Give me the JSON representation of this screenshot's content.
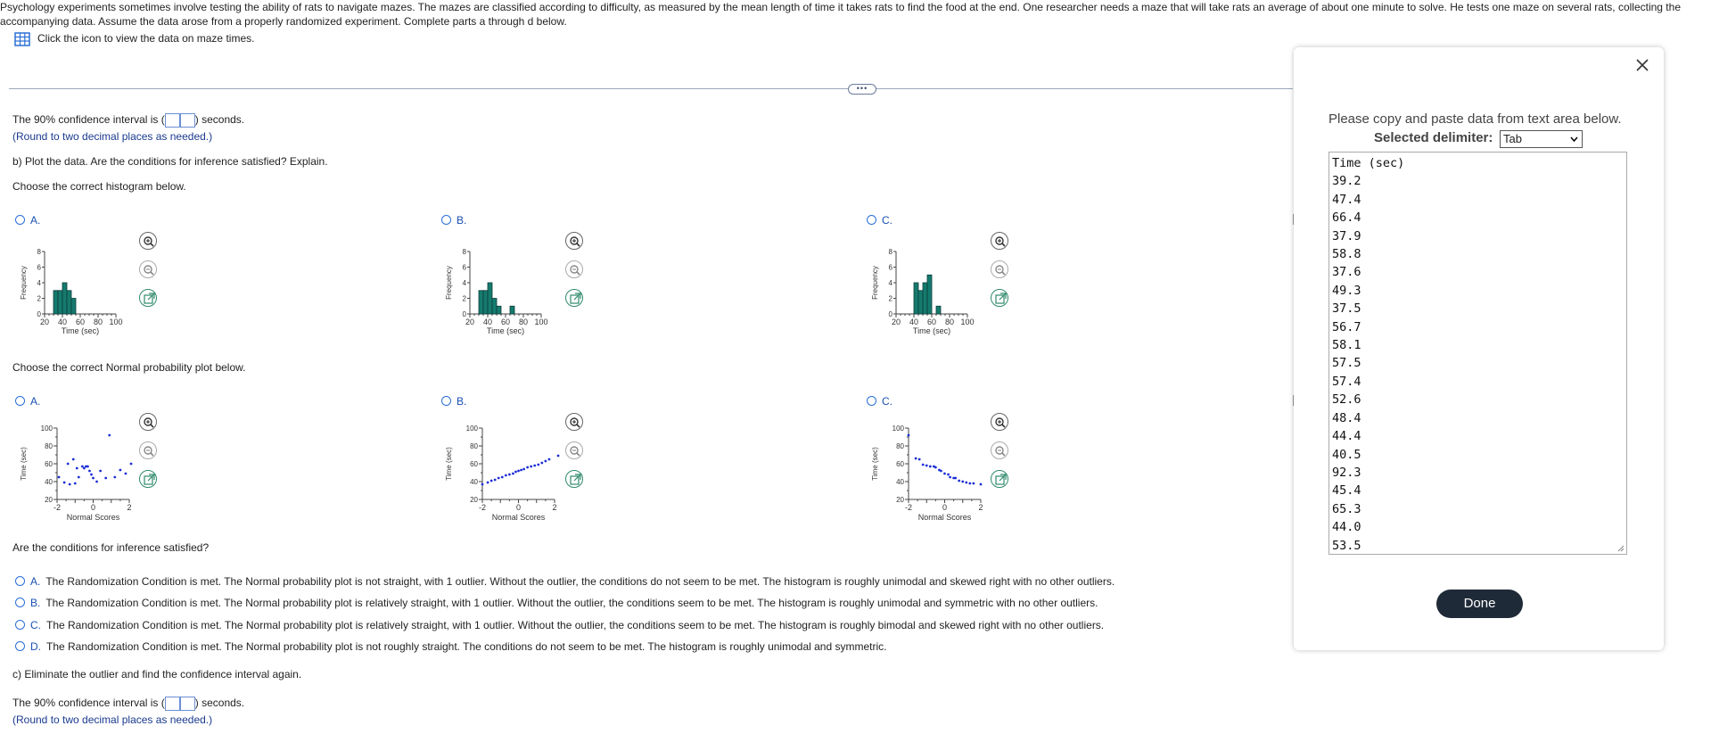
{
  "intro": {
    "text": "Psychology experiments sometimes involve testing the ability of rats to navigate mazes. The mazes are classified according to difficulty, as measured by the mean length of time it takes rats to find the food at the end. One researcher needs a maze that will take rats an average of about one minute to solve. He tests one maze on several rats, collecting the accompanying data. Assume the data arose from a properly randomized experiment. Complete parts a through d below.",
    "data_link": "Click the icon to view the data on maze times."
  },
  "part_a": {
    "ci_prefix": "The 90% confidence interval is (",
    "ci_suffix": ") seconds.",
    "round_note": "(Round to two decimal places as needed.)"
  },
  "part_b": {
    "prompt": "b) Plot the data. Are the conditions for inference satisfied? Explain.",
    "hist_prompt": "Choose the correct histogram below.",
    "npp_prompt": "Choose the correct Normal probability plot below.",
    "conditions_prompt": "Are the conditions for inference satisfied?"
  },
  "options": {
    "A": "A.",
    "B": "B.",
    "C": "C.",
    "D": "D."
  },
  "histograms": [
    {
      "label": "A.",
      "bins_start": 30,
      "bin_width": 5,
      "counts": [
        3,
        3,
        4,
        3,
        2,
        0,
        0,
        0,
        0,
        0,
        0,
        0,
        0,
        0
      ]
    },
    {
      "label": "B.",
      "bins_start": 30,
      "bin_width": 5,
      "counts": [
        3,
        3,
        4,
        2,
        1,
        0,
        0,
        1,
        0,
        0,
        0,
        0,
        0,
        0
      ]
    },
    {
      "label": "C.",
      "bins_start": 40,
      "bin_width": 5,
      "counts": [
        4,
        3,
        4,
        5,
        0,
        1
      ]
    }
  ],
  "hist_axes": {
    "xlabel": "Time (sec)",
    "ylabel": "Frequency",
    "xticks": [
      "20",
      "40",
      "60",
      "80",
      "100"
    ],
    "yticks": [
      "0",
      "2",
      "4",
      "6",
      "8"
    ]
  },
  "npp_axes": {
    "xlabel": "Normal Scores",
    "ylabel": "Time (sec)",
    "xticks": [
      "-2",
      "0",
      "2"
    ],
    "yticks": [
      "20",
      "40",
      "60",
      "80",
      "100"
    ]
  },
  "npps": [
    {
      "label": "A.",
      "points": [
        [
          -1.9,
          45
        ],
        [
          -1.6,
          39
        ],
        [
          -1.4,
          60
        ],
        [
          -1.3,
          37
        ],
        [
          -1.1,
          65
        ],
        [
          -1.0,
          38
        ],
        [
          -0.9,
          55
        ],
        [
          -0.8,
          45
        ],
        [
          -0.6,
          57
        ],
        [
          -0.5,
          55
        ],
        [
          -0.4,
          57
        ],
        [
          -0.3,
          57
        ],
        [
          -0.2,
          52
        ],
        [
          -0.1,
          48
        ],
        [
          0.0,
          44
        ],
        [
          0.2,
          40
        ],
        [
          0.4,
          52
        ],
        [
          0.7,
          44
        ],
        [
          0.9,
          92
        ],
        [
          1.2,
          45
        ],
        [
          1.5,
          53
        ],
        [
          1.8,
          49
        ],
        [
          2.1,
          60
        ]
      ]
    },
    {
      "label": "B.",
      "points": [
        [
          -2.0,
          37
        ],
        [
          -1.7,
          39
        ],
        [
          -1.5,
          41
        ],
        [
          -1.3,
          42
        ],
        [
          -1.1,
          44
        ],
        [
          -0.9,
          45
        ],
        [
          -0.7,
          47
        ],
        [
          -0.5,
          48
        ],
        [
          -0.3,
          49
        ],
        [
          -0.15,
          51
        ],
        [
          0.0,
          52
        ],
        [
          0.15,
          53
        ],
        [
          0.3,
          54
        ],
        [
          0.5,
          56
        ],
        [
          0.7,
          57
        ],
        [
          0.9,
          58
        ],
        [
          1.1,
          59
        ],
        [
          1.3,
          61
        ],
        [
          1.5,
          63
        ],
        [
          1.7,
          65
        ],
        [
          2.2,
          69
        ]
      ]
    },
    {
      "label": "C.",
      "points": [
        [
          -2.0,
          92
        ],
        [
          -1.6,
          66
        ],
        [
          -1.4,
          65
        ],
        [
          -1.2,
          59
        ],
        [
          -1.0,
          58
        ],
        [
          -0.8,
          57
        ],
        [
          -0.6,
          57
        ],
        [
          -0.5,
          56
        ],
        [
          -0.3,
          53
        ],
        [
          -0.2,
          52
        ],
        [
          0.0,
          49
        ],
        [
          0.2,
          48
        ],
        [
          0.3,
          45
        ],
        [
          0.5,
          44
        ],
        [
          0.6,
          44
        ],
        [
          0.8,
          41
        ],
        [
          1.0,
          40
        ],
        [
          1.2,
          39
        ],
        [
          1.4,
          38
        ],
        [
          1.6,
          38
        ],
        [
          2.0,
          37
        ]
      ]
    }
  ],
  "answers": [
    {
      "letter": "A.",
      "text": "The Randomization Condition is met. The Normal probability plot is not straight, with 1 outlier. Without the outlier, the conditions do not seem to be met. The histogram is roughly unimodal and skewed right with no other outliers."
    },
    {
      "letter": "B.",
      "text": "The Randomization Condition is met. The Normal probability plot is relatively straight, with 1 outlier. Without the outlier, the conditions seem to be met. The histogram is roughly unimodal and symmetric with no other outliers."
    },
    {
      "letter": "C.",
      "text": "The Randomization Condition is met. The Normal probability plot is relatively straight, with 1 outlier. Without the outlier, the conditions seem to be met. The histogram is roughly bimodal and skewed right with no other outliers."
    },
    {
      "letter": "D.",
      "text": "The Randomization Condition is met. The Normal probability plot is not roughly straight. The conditions do not seem to be met. The histogram is roughly unimodal and symmetric."
    }
  ],
  "part_c": {
    "prompt": "c) Eliminate the outlier and find the confidence interval again.",
    "ci_prefix": "The 90% confidence interval is (",
    "ci_suffix": ") seconds.",
    "round_note": "(Round to two decimal places as needed.)"
  },
  "popup": {
    "instruction": "Please copy and paste data from text area below.",
    "delimiter_label": "Selected delimiter:",
    "delimiter_value": "Tab",
    "header": "Time (sec)",
    "values": [
      "39.2",
      "47.4",
      "66.4",
      "37.9",
      "58.8",
      "37.6",
      "49.3",
      "37.5",
      "56.7",
      "58.1",
      "57.5",
      "57.4",
      "52.6",
      "48.4",
      "44.4",
      "40.5",
      "92.3",
      "45.4",
      "65.3",
      "44.0",
      "53.5"
    ],
    "done_label": "Done"
  }
}
